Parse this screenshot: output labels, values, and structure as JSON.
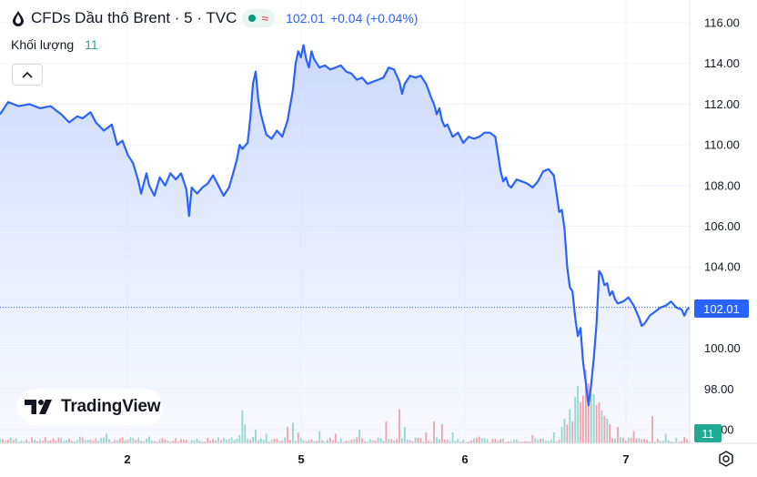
{
  "header": {
    "symbol_title": "CFDs Dầu thô Brent · 5 · TVC",
    "wave_glyph": "≈",
    "last_price": "102.01",
    "change": "+0.04 (+0.04%)"
  },
  "volume_legend": {
    "label": "Khối lượng",
    "value": "11"
  },
  "logo": {
    "text": "TradingView"
  },
  "price_tag": "102.01",
  "volume_tag": "11",
  "colors": {
    "line": "#2962ff",
    "area_top": "#c8d6fb",
    "vol_up": "#22ab94",
    "vol_down": "#f23645",
    "grid": "#f0f3fa"
  },
  "icons": [
    "oil-drop-icon",
    "market-status-dot-icon",
    "wave-icon",
    "chevron-up-icon",
    "settings-icon"
  ],
  "chart_data": {
    "type": "area",
    "title": "CFDs Dầu thô Brent · 5 · TVC",
    "y_ticks": [
      "116.00",
      "114.00",
      "112.00",
      "110.00",
      "108.00",
      "106.00",
      "104.00",
      "102.00",
      "100.00",
      "98.00",
      "96.00"
    ],
    "y_range": [
      95.6,
      116.4
    ],
    "x_labels": [
      "2",
      "5",
      "6",
      "7"
    ],
    "grid": true,
    "price_series": [
      [
        0,
        111.5
      ],
      [
        3,
        112.1
      ],
      [
        7,
        111.9
      ],
      [
        11,
        112.0
      ],
      [
        15,
        111.8
      ],
      [
        19,
        111.9
      ],
      [
        23,
        111.5
      ],
      [
        26,
        111.1
      ],
      [
        29,
        111.4
      ],
      [
        31,
        111.3
      ],
      [
        34,
        111.6
      ],
      [
        36,
        111.1
      ],
      [
        39,
        110.7
      ],
      [
        42,
        111.0
      ],
      [
        44,
        110.0
      ],
      [
        46,
        110.2
      ],
      [
        48,
        109.5
      ],
      [
        50,
        109.1
      ],
      [
        52,
        108.2
      ],
      [
        53,
        107.6
      ],
      [
        55,
        108.6
      ],
      [
        56,
        108.0
      ],
      [
        58,
        107.5
      ],
      [
        60,
        108.4
      ],
      [
        62,
        108.0
      ],
      [
        64,
        108.6
      ],
      [
        66,
        108.3
      ],
      [
        68,
        108.6
      ],
      [
        70,
        107.8
      ],
      [
        71,
        106.5
      ],
      [
        72,
        107.9
      ],
      [
        74,
        107.6
      ],
      [
        76,
        107.9
      ],
      [
        78,
        108.1
      ],
      [
        80,
        108.5
      ],
      [
        82,
        108.0
      ],
      [
        84,
        107.5
      ],
      [
        86,
        107.9
      ],
      [
        88,
        108.8
      ],
      [
        89,
        109.3
      ],
      [
        90,
        110.0
      ],
      [
        91,
        109.8
      ],
      [
        93,
        110.1
      ],
      [
        94,
        111.3
      ],
      [
        95,
        113.0
      ],
      [
        96,
        113.6
      ],
      [
        97,
        112.2
      ],
      [
        98,
        111.5
      ],
      [
        100,
        110.5
      ],
      [
        102,
        110.3
      ],
      [
        104,
        110.7
      ],
      [
        106,
        110.4
      ],
      [
        108,
        111.2
      ],
      [
        110,
        112.7
      ],
      [
        111,
        114.0
      ],
      [
        112,
        114.6
      ],
      [
        113,
        114.3
      ],
      [
        114,
        114.9
      ],
      [
        115,
        114.2
      ],
      [
        116,
        113.8
      ],
      [
        117,
        114.6
      ],
      [
        118,
        114.2
      ],
      [
        120,
        113.8
      ],
      [
        122,
        113.9
      ],
      [
        124,
        113.7
      ],
      [
        126,
        113.8
      ],
      [
        128,
        113.9
      ],
      [
        130,
        113.6
      ],
      [
        132,
        113.5
      ],
      [
        134,
        113.2
      ],
      [
        136,
        113.3
      ],
      [
        138,
        113.0
      ],
      [
        140,
        113.1
      ],
      [
        142,
        113.2
      ],
      [
        144,
        113.3
      ],
      [
        146,
        113.8
      ],
      [
        148,
        113.7
      ],
      [
        150,
        113.1
      ],
      [
        151,
        112.5
      ],
      [
        152,
        113.0
      ],
      [
        154,
        113.4
      ],
      [
        156,
        113.3
      ],
      [
        158,
        113.4
      ],
      [
        160,
        113.0
      ],
      [
        162,
        112.3
      ],
      [
        163,
        112.0
      ],
      [
        164,
        111.5
      ],
      [
        165,
        111.8
      ],
      [
        166,
        111.2
      ],
      [
        167,
        110.9
      ],
      [
        168,
        111.0
      ],
      [
        170,
        110.4
      ],
      [
        172,
        110.6
      ],
      [
        174,
        110.1
      ],
      [
        176,
        110.4
      ],
      [
        178,
        110.3
      ],
      [
        180,
        110.4
      ],
      [
        182,
        110.6
      ],
      [
        184,
        110.6
      ],
      [
        186,
        110.4
      ],
      [
        188,
        108.7
      ],
      [
        189,
        108.2
      ],
      [
        190,
        108.4
      ],
      [
        191,
        108.0
      ],
      [
        192,
        107.9
      ],
      [
        194,
        108.3
      ],
      [
        196,
        108.2
      ],
      [
        198,
        108.1
      ],
      [
        200,
        107.9
      ],
      [
        202,
        108.2
      ],
      [
        204,
        108.7
      ],
      [
        206,
        108.8
      ],
      [
        208,
        108.5
      ],
      [
        209,
        107.6
      ],
      [
        210,
        106.7
      ],
      [
        211,
        106.8
      ],
      [
        212,
        105.9
      ],
      [
        213,
        104.0
      ],
      [
        214,
        103.0
      ],
      [
        215,
        102.8
      ],
      [
        216,
        101.5
      ],
      [
        217,
        100.6
      ],
      [
        218,
        101.0
      ],
      [
        219,
        99.3
      ],
      [
        220,
        98.3
      ],
      [
        221,
        97.2
      ],
      [
        222,
        98.2
      ],
      [
        223,
        99.5
      ],
      [
        224,
        101.2
      ],
      [
        225,
        103.8
      ],
      [
        226,
        103.6
      ],
      [
        227,
        103.1
      ],
      [
        228,
        103.2
      ],
      [
        229,
        102.6
      ],
      [
        230,
        102.8
      ],
      [
        231,
        102.4
      ],
      [
        232,
        102.2
      ],
      [
        234,
        102.3
      ],
      [
        236,
        102.5
      ],
      [
        238,
        102.1
      ],
      [
        240,
        101.5
      ],
      [
        241,
        101.1
      ],
      [
        242,
        101.2
      ],
      [
        244,
        101.6
      ],
      [
        246,
        101.8
      ],
      [
        248,
        102.0
      ],
      [
        250,
        102.1
      ],
      [
        252,
        102.3
      ],
      [
        254,
        102.0
      ],
      [
        256,
        101.9
      ],
      [
        257,
        101.6
      ],
      [
        258,
        101.9
      ],
      [
        259,
        102.01
      ]
    ],
    "volume_y_range": [
      0,
      60
    ],
    "volume_spikes": [
      [
        0,
        3
      ],
      [
        30,
        5
      ],
      [
        40,
        7
      ],
      [
        56,
        5
      ],
      [
        78,
        4
      ],
      [
        90,
        6
      ],
      [
        91,
        24
      ],
      [
        92,
        14
      ],
      [
        96,
        10
      ],
      [
        100,
        7
      ],
      [
        108,
        12
      ],
      [
        110,
        15
      ],
      [
        112,
        8
      ],
      [
        120,
        9
      ],
      [
        126,
        7
      ],
      [
        135,
        10
      ],
      [
        145,
        16
      ],
      [
        150,
        25
      ],
      [
        152,
        12
      ],
      [
        160,
        8
      ],
      [
        163,
        16
      ],
      [
        166,
        14
      ],
      [
        170,
        8
      ],
      [
        180,
        5
      ],
      [
        200,
        6
      ],
      [
        208,
        8
      ],
      [
        211,
        12
      ],
      [
        212,
        18
      ],
      [
        213,
        14
      ],
      [
        214,
        25
      ],
      [
        215,
        16
      ],
      [
        216,
        34
      ],
      [
        217,
        42
      ],
      [
        218,
        30
      ],
      [
        219,
        35
      ],
      [
        220,
        54
      ],
      [
        221,
        44
      ],
      [
        222,
        37
      ],
      [
        223,
        36
      ],
      [
        224,
        28
      ],
      [
        225,
        30
      ],
      [
        226,
        24
      ],
      [
        227,
        20
      ],
      [
        228,
        18
      ],
      [
        229,
        14
      ],
      [
        232,
        12
      ],
      [
        238,
        9
      ],
      [
        245,
        20
      ],
      [
        250,
        7
      ],
      [
        258,
        3
      ]
    ]
  }
}
